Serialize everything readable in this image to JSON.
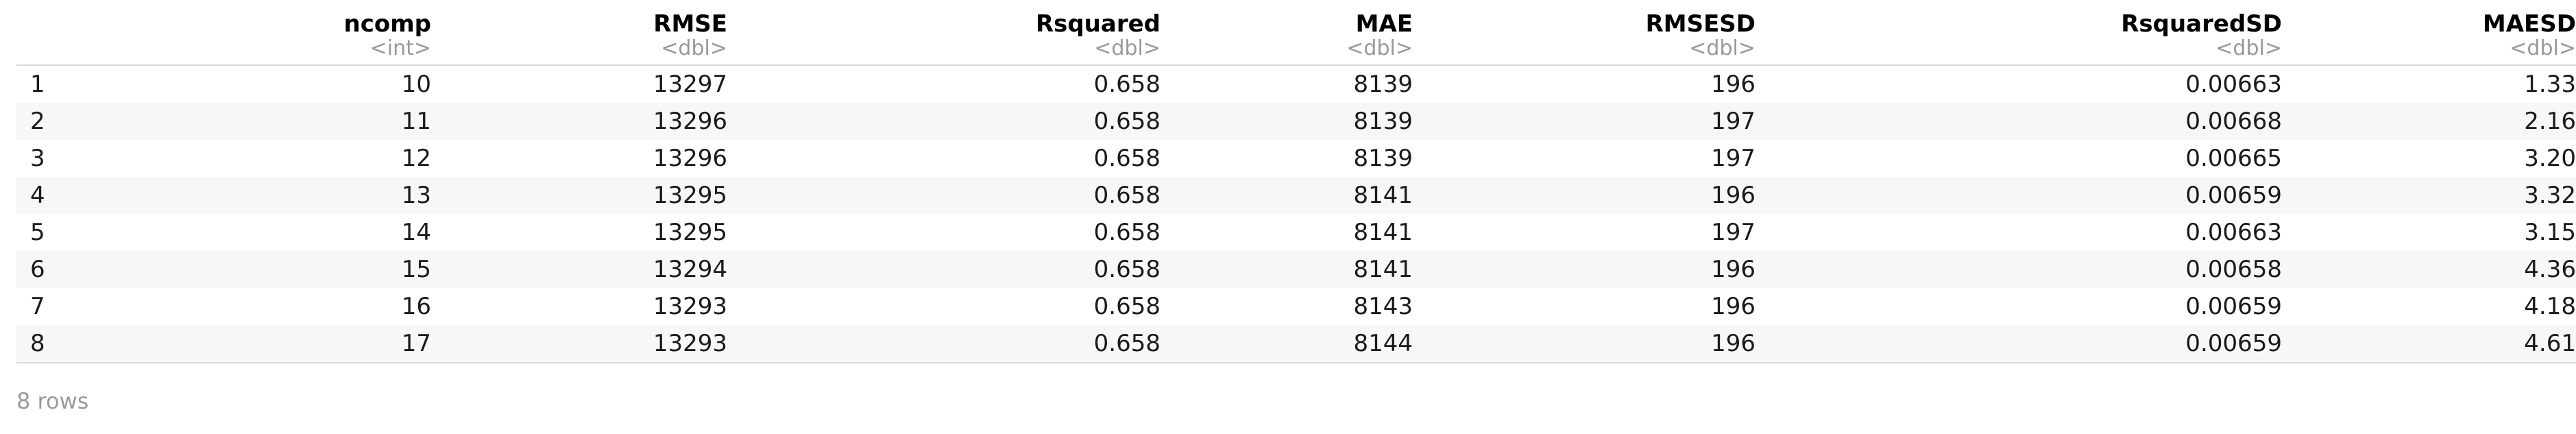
{
  "table": {
    "columns": [
      {
        "name": "",
        "type": ""
      },
      {
        "name": "ncomp",
        "type": "<int>"
      },
      {
        "name": "RMSE",
        "type": "<dbl>"
      },
      {
        "name": "Rsquared",
        "type": "<dbl>"
      },
      {
        "name": "MAE",
        "type": "<dbl>"
      },
      {
        "name": "RMSESD",
        "type": "<dbl>"
      },
      {
        "name": "RsquaredSD",
        "type": "<dbl>"
      },
      {
        "name": "MAESD",
        "type": "<dbl>"
      }
    ],
    "rows": [
      [
        "1",
        "10",
        "13297",
        "0.658",
        "8139",
        "196",
        "0.00663",
        "1.33"
      ],
      [
        "2",
        "11",
        "13296",
        "0.658",
        "8139",
        "197",
        "0.00668",
        "2.16"
      ],
      [
        "3",
        "12",
        "13296",
        "0.658",
        "8139",
        "197",
        "0.00665",
        "3.20"
      ],
      [
        "4",
        "13",
        "13295",
        "0.658",
        "8141",
        "196",
        "0.00659",
        "3.32"
      ],
      [
        "5",
        "14",
        "13295",
        "0.658",
        "8141",
        "197",
        "0.00663",
        "3.15"
      ],
      [
        "6",
        "15",
        "13294",
        "0.658",
        "8141",
        "196",
        "0.00658",
        "4.36"
      ],
      [
        "7",
        "16",
        "13293",
        "0.658",
        "8143",
        "196",
        "0.00659",
        "4.18"
      ],
      [
        "8",
        "17",
        "13293",
        "0.658",
        "8144",
        "196",
        "0.00659",
        "4.61"
      ]
    ]
  },
  "footer": {
    "row_count": "8 rows"
  }
}
